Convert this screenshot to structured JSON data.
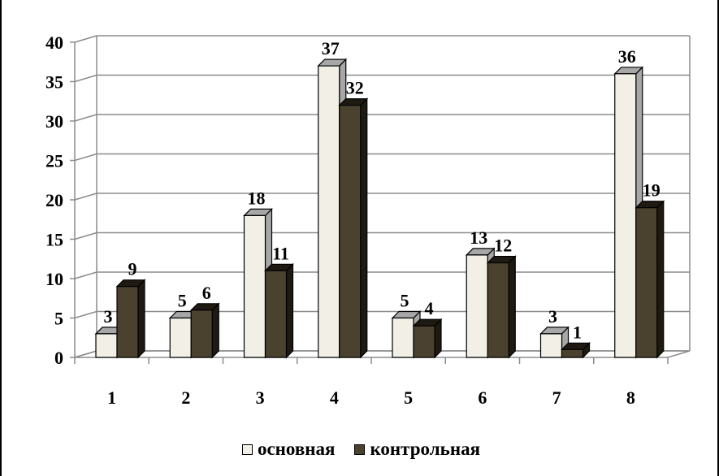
{
  "chart_data": {
    "type": "bar",
    "categories": [
      "1",
      "2",
      "3",
      "4",
      "5",
      "6",
      "7",
      "8"
    ],
    "series": [
      {
        "name": "основная",
        "values": [
          3,
          5,
          18,
          37,
          5,
          13,
          3,
          36
        ],
        "color": "#f2f0e6",
        "side_color": "#a7a7a7"
      },
      {
        "name": "контрольная",
        "values": [
          9,
          6,
          11,
          32,
          4,
          12,
          1,
          19
        ],
        "color": "#4a412f",
        "side_color": "#1e1a12"
      }
    ],
    "yticks": [
      "0",
      "5",
      "10",
      "15",
      "20",
      "25",
      "30",
      "35",
      "40"
    ],
    "ylim": [
      0,
      40
    ],
    "grid": true,
    "three_d": true,
    "data_labels": true,
    "legend_position": "bottom"
  }
}
